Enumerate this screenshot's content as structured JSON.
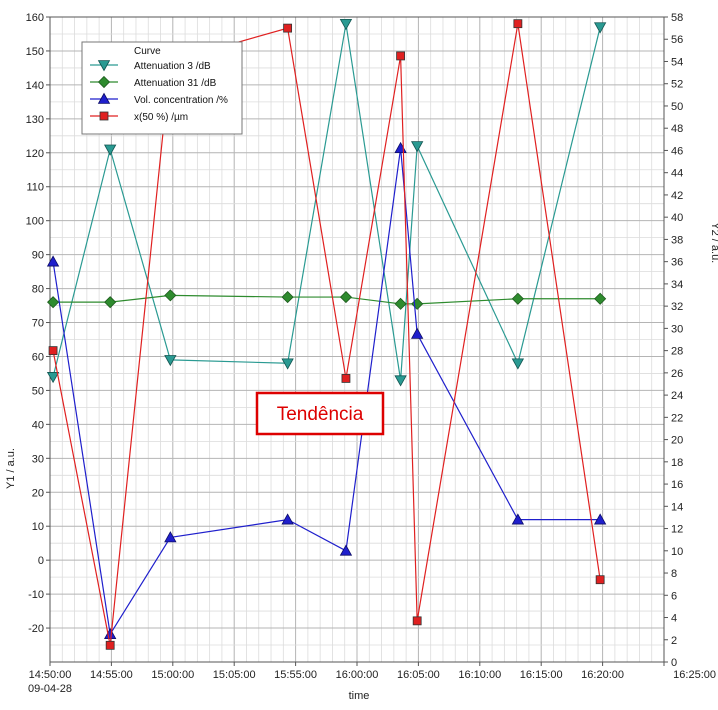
{
  "chart_data": {
    "type": "line",
    "xlabel": "time",
    "x_date_label": "09-04-28",
    "y1_label": "Y1 / a.u.",
    "y2_label": "Y2 / a.u.",
    "y1_range": [
      -30,
      160
    ],
    "y2_range": [
      0,
      58
    ],
    "y1_ticks": [
      160,
      150,
      140,
      130,
      120,
      110,
      100,
      90,
      80,
      70,
      60,
      50,
      40,
      30,
      20,
      10,
      0,
      -10,
      -20
    ],
    "y2_ticks": [
      0,
      2,
      4,
      6,
      8,
      10,
      12,
      14,
      16,
      18,
      20,
      22,
      24,
      26,
      28,
      30,
      32,
      34,
      36,
      38,
      40,
      42,
      44,
      46,
      48,
      50,
      52,
      54,
      56,
      58
    ],
    "x_ticks": [
      "14:50:00",
      "14:55:00",
      "15:00:00",
      "15:05:00",
      "15:55:00",
      "16:00:00",
      "16:05:00",
      "16:10:00",
      "16:15:00",
      "16:20:00",
      "16:25:00"
    ],
    "x_axis_note": "The x tick labels are not evenly spaced in time (the axis jumps from 15:05:00 to 15:55:00); samples are placed by tick position.",
    "grid": true,
    "legend_position": "top-left",
    "legend_title": "Curve",
    "annotation": "Tendência",
    "annotation_color": "#dd0000",
    "series": [
      {
        "name": "Attenuation 3 /dB",
        "axis": "y1",
        "color": "#2a9a92",
        "marker": "triangle-down",
        "x": [
          0.05,
          0.98,
          1.96,
          3.87,
          4.82,
          5.71,
          5.98,
          7.62,
          8.96
        ],
        "values": [
          54,
          121,
          59,
          58,
          158,
          53,
          122,
          58,
          157
        ]
      },
      {
        "name": "Attenuation 31 /dB",
        "axis": "y1",
        "color": "#2e8b2e",
        "marker": "diamond",
        "x": [
          0.05,
          0.98,
          1.96,
          3.87,
          4.82,
          5.71,
          5.98,
          7.62,
          8.96
        ],
        "values": [
          76,
          76,
          78,
          77.5,
          77.5,
          75.5,
          75.5,
          77,
          77
        ]
      },
      {
        "name": "Vol. concentration /%",
        "axis": "y2",
        "color": "#1f1fcc",
        "marker": "triangle-up",
        "x": [
          0.05,
          0.98,
          1.96,
          3.87,
          4.82,
          5.71,
          5.98,
          7.62,
          8.96
        ],
        "values": [
          36,
          2.5,
          11.2,
          12.8,
          10,
          46.2,
          29.5,
          12.8,
          12.8
        ]
      },
      {
        "name": "x(50 %) /µm",
        "axis": "y2",
        "color": "#e02020",
        "marker": "square",
        "x": [
          0.05,
          0.98,
          1.96,
          3.87,
          4.82,
          5.71,
          5.98,
          7.62,
          8.96
        ],
        "values": [
          28,
          1.5,
          54,
          57,
          25.5,
          54.5,
          3.7,
          57.4,
          7.4
        ]
      }
    ]
  }
}
